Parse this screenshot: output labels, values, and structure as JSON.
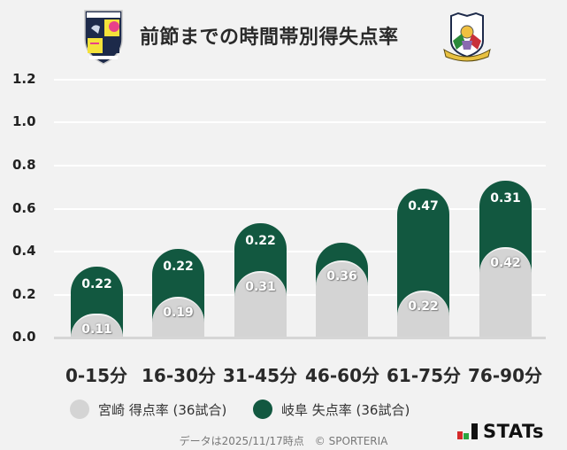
{
  "header": {
    "title": "前節までの時間帯別得失点率",
    "home_logo": "miyazaki-crest",
    "away_logo": "fc-gifu-crest"
  },
  "colors": {
    "home": "#d4d4d4",
    "away": "#125840",
    "background": "#f2f2f2"
  },
  "chart_data": {
    "type": "bar",
    "stacked": true,
    "title": "前節までの時間帯別得失点率",
    "categories": [
      "0-15分",
      "16-30分",
      "31-45分",
      "46-60分",
      "61-75分",
      "76-90分"
    ],
    "series": [
      {
        "name": "宮崎 得点率 (36試合)",
        "color": "#d4d4d4",
        "values": [
          0.11,
          0.19,
          0.31,
          0.36,
          0.22,
          0.42
        ],
        "labels": [
          "0.11",
          "0.19",
          "0.31",
          "0.36",
          "0.22",
          "0.42"
        ]
      },
      {
        "name": "岐阜 失点率 (36試合)",
        "color": "#125840",
        "values": [
          0.22,
          0.22,
          0.22,
          0.08,
          0.47,
          0.31
        ],
        "labels": [
          "0.22",
          "0.22",
          "0.22",
          "",
          "0.47",
          "0.31"
        ]
      }
    ],
    "yticks": [
      "0.0",
      "0.2",
      "0.4",
      "0.6",
      "0.8",
      "1.0",
      "1.2"
    ],
    "ylim": [
      0,
      1.2
    ],
    "xlabel": "",
    "ylabel": "",
    "grid": true,
    "legend_position": "bottom"
  },
  "legend": {
    "home_label": "宮崎 得点率 (36試合)",
    "away_label": "岐阜 失点率 (36試合)"
  },
  "footer": {
    "note": "データは2025/11/17時点　© SPORTERIA",
    "brand": "STATs"
  }
}
